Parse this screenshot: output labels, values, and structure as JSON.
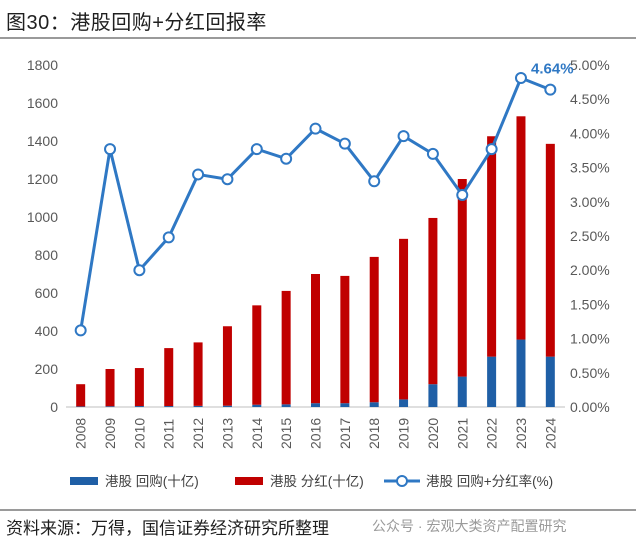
{
  "figure": {
    "title": "图30：港股回购+分红回报率",
    "source": "资料来源：万得，国信证券经济研究所整理",
    "watermark": "公众号 · 宏观大类资产配置研究"
  },
  "colors": {
    "buyback": "#1f5fa6",
    "dividend": "#c00000",
    "line": "#2f78c4",
    "callout": "#2f78c4"
  },
  "chart_data": {
    "type": "bar+line",
    "categories": [
      "2008",
      "2009",
      "2010",
      "2011",
      "2012",
      "2013",
      "2014",
      "2015",
      "2016",
      "2017",
      "2018",
      "2019",
      "2020",
      "2021",
      "2022",
      "2023",
      "2024"
    ],
    "series": [
      {
        "name": "港股 回购(十亿)",
        "type": "stacked-bar",
        "axis": "left",
        "values": [
          3,
          4,
          5,
          5,
          6,
          7,
          12,
          14,
          20,
          20,
          25,
          40,
          120,
          160,
          265,
          355,
          265
        ]
      },
      {
        "name": "港股 分红(十亿)",
        "type": "stacked-bar",
        "axis": "left",
        "values": [
          117,
          196,
          200,
          305,
          334,
          418,
          523,
          597,
          680,
          670,
          765,
          845,
          875,
          1040,
          1160,
          1175,
          1120
        ]
      },
      {
        "name": "港股 回购+分红率(%)",
        "type": "line",
        "axis": "right",
        "values": [
          1.12,
          3.77,
          2.0,
          2.48,
          3.4,
          3.33,
          3.77,
          3.63,
          4.07,
          3.85,
          3.3,
          3.96,
          3.7,
          3.1,
          3.77,
          4.81,
          4.64
        ]
      }
    ],
    "left_axis": {
      "min": 0,
      "max": 1800,
      "ticks": [
        "0",
        "200",
        "400",
        "600",
        "800",
        "1000",
        "1200",
        "1400",
        "1600",
        "1800"
      ]
    },
    "right_axis": {
      "min": 0,
      "max": 5.0,
      "ticks": [
        "0.00%",
        "0.50%",
        "1.00%",
        "1.50%",
        "2.00%",
        "2.50%",
        "3.00%",
        "3.50%",
        "4.00%",
        "4.50%",
        "5.00%"
      ]
    },
    "annotation": {
      "text": "4.64%",
      "category": "2024"
    },
    "legend": [
      "港股 回购(十亿)",
      "港股 分红(十亿)",
      "港股 回购+分红率(%)"
    ],
    "legend_position": "bottom"
  }
}
